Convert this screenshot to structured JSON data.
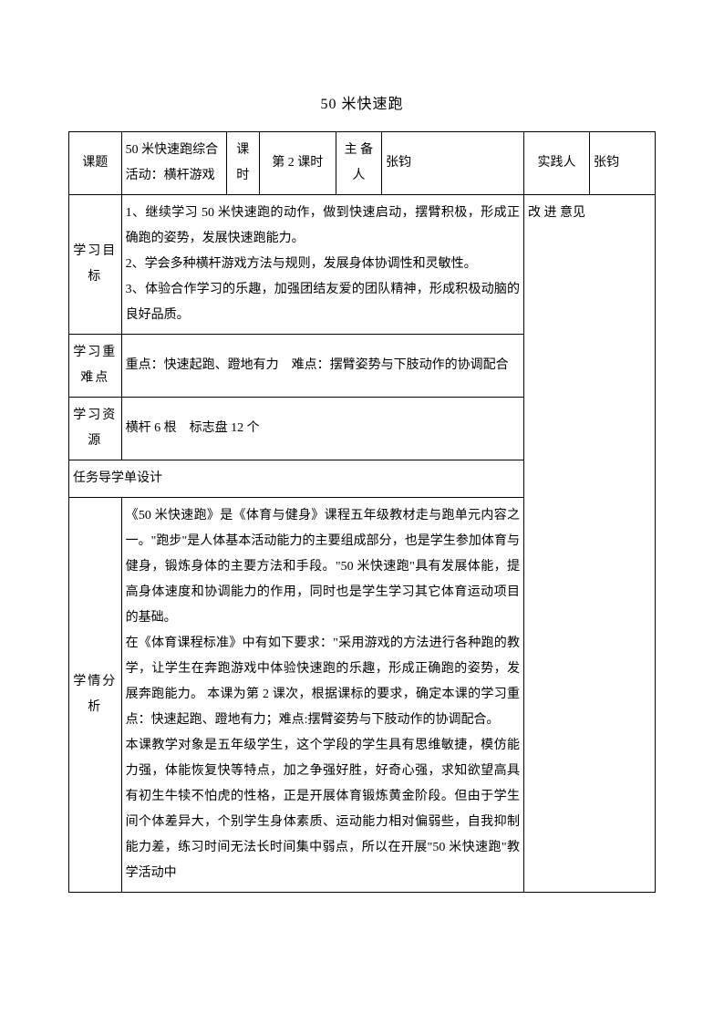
{
  "title": "50 米快速跑",
  "header": {
    "r1c1": "课题",
    "r1c2": "50 米快速跑综合活动：横杆游戏",
    "r1c3": "课时",
    "r1c4": "第 2 课时",
    "r1c5": "主 备人",
    "r1c6": "张钧",
    "r1c7": "实践人",
    "r1c8": "张钧"
  },
  "goals": {
    "label": "学习目标",
    "content": "1、继续学习 50 米快速跑的动作，做到快速启动，摆臂积极，形成正确跑的姿势，发展快速跑能力。\n2、学会多种横杆游戏方法与规则，发展身体协调性和灵敏性。\n3、体验合作学习的乐趣，加强团结友爱的团队精神，形成积极动脑的良好品质。",
    "sideLabel": "改 进 意见"
  },
  "keypoints": {
    "label": "学习重 难点",
    "content": "重点：快速起跑、蹬地有力 难点：摆臂姿势与下肢动作的协调配合"
  },
  "resources": {
    "label": "学习资源",
    "content": "横杆 6 根 标志盘 12 个"
  },
  "taskDesign": "任务导学单设计",
  "analysis": {
    "label": "学情分析",
    "content": "《50 米快速跑》是《体育与健身》课程五年级教材走与跑单元内容之一。\"跑步\"是人体基本活动能力的主要组成部分，也是学生参加体育与健身，锻炼身体的主要方法和手段。\"50 米快速跑\"具有发展体能，提高身体速度和协调能力的作用，同时也是学生学习其它体育运动项目的基础。\n在《体育课程标准》中有如下要求：\"采用游戏的方法进行各种跑的教学，让学生在奔跑游戏中体验快速跑的乐趣，形成正确跑的姿势，发展奔跑能力。 本课为第 2 课次，根据课标的要求，确定本课的学习重点：快速起跑、蹬地有力；难点:摆臂姿势与下肢动作的协调配合。\n本课教学对象是五年级学生，这个学段的学生具有思维敏捷，模仿能力强，体能恢复快等特点，加之争强好胜，好奇心强，求知欲望高具有初生牛犊不怕虎的性格，正是开展体育锻炼黄金阶段。但由于学生间个体差异大，个别学生身体素质、运动能力相对偏弱些，自我抑制能力差，练习时间无法长时间集中弱点，所以在开展\"50 米快速跑\"教学活动中"
  },
  "layout": {
    "colWidths": [
      "48px",
      "96px",
      "30px",
      "70px",
      "42px",
      "130px",
      "60px",
      "60px"
    ]
  }
}
